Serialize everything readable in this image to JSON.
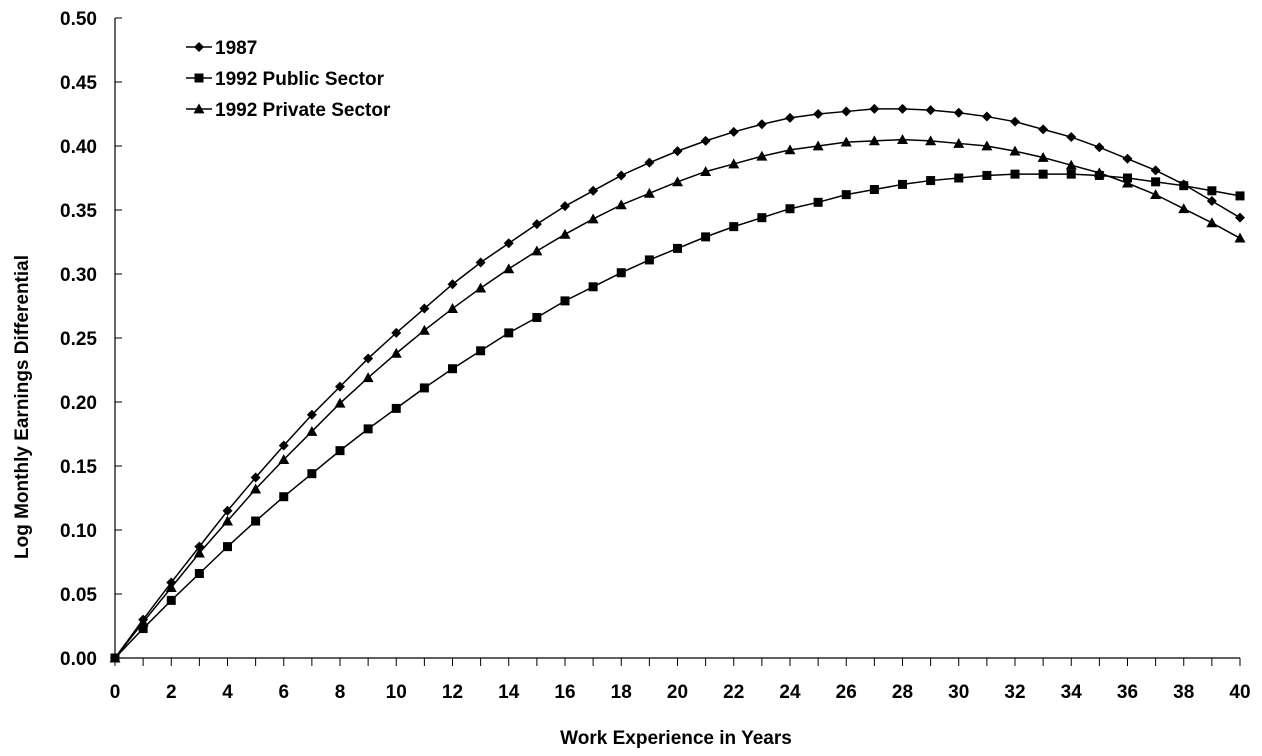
{
  "chart_data": {
    "type": "line",
    "xlabel": "Work Experience in Years",
    "ylabel": "Log Monthly Earnings Differential",
    "xlim": [
      0,
      40
    ],
    "ylim": [
      0,
      0.5
    ],
    "x_tick_labels": [
      "0",
      "2",
      "4",
      "6",
      "8",
      "10",
      "12",
      "14",
      "16",
      "18",
      "20",
      "22",
      "24",
      "26",
      "28",
      "30",
      "32",
      "34",
      "36",
      "38",
      "40"
    ],
    "y_tick_labels": [
      "0.00",
      "0.05",
      "0.10",
      "0.15",
      "0.20",
      "0.25",
      "0.30",
      "0.35",
      "0.40",
      "0.45",
      "0.50"
    ],
    "grid": false,
    "legend_position": "top-left",
    "x": [
      0,
      1,
      2,
      3,
      4,
      5,
      6,
      7,
      8,
      9,
      10,
      11,
      12,
      13,
      14,
      15,
      16,
      17,
      18,
      19,
      20,
      21,
      22,
      23,
      24,
      25,
      26,
      27,
      28,
      29,
      30,
      31,
      32,
      33,
      34,
      35,
      36,
      37,
      38,
      39,
      40
    ],
    "series": [
      {
        "name": "1987",
        "marker": "diamond",
        "color": "#000000",
        "values": [
          0.0,
          0.03,
          0.059,
          0.087,
          0.115,
          0.141,
          0.166,
          0.19,
          0.212,
          0.234,
          0.254,
          0.273,
          0.292,
          0.309,
          0.324,
          0.339,
          0.353,
          0.365,
          0.377,
          0.387,
          0.396,
          0.404,
          0.411,
          0.417,
          0.422,
          0.425,
          0.427,
          0.429,
          0.429,
          0.428,
          0.426,
          0.423,
          0.419,
          0.413,
          0.407,
          0.399,
          0.39,
          0.381,
          0.37,
          0.357,
          0.344
        ]
      },
      {
        "name": "1992 Public Sector",
        "marker": "square",
        "color": "#000000",
        "values": [
          0.0,
          0.023,
          0.045,
          0.066,
          0.087,
          0.107,
          0.126,
          0.144,
          0.162,
          0.179,
          0.195,
          0.211,
          0.226,
          0.24,
          0.254,
          0.266,
          0.279,
          0.29,
          0.301,
          0.311,
          0.32,
          0.329,
          0.337,
          0.344,
          0.351,
          0.356,
          0.362,
          0.366,
          0.37,
          0.373,
          0.375,
          0.377,
          0.378,
          0.378,
          0.378,
          0.377,
          0.375,
          0.372,
          0.369,
          0.365,
          0.361
        ]
      },
      {
        "name": "1992 Private Sector",
        "marker": "triangle",
        "color": "#000000",
        "values": [
          0.0,
          0.028,
          0.055,
          0.082,
          0.107,
          0.132,
          0.155,
          0.177,
          0.199,
          0.219,
          0.238,
          0.256,
          0.273,
          0.289,
          0.304,
          0.318,
          0.331,
          0.343,
          0.354,
          0.363,
          0.372,
          0.38,
          0.386,
          0.392,
          0.397,
          0.4,
          0.403,
          0.404,
          0.405,
          0.404,
          0.402,
          0.4,
          0.396,
          0.391,
          0.385,
          0.379,
          0.371,
          0.362,
          0.351,
          0.34,
          0.328
        ]
      }
    ]
  }
}
